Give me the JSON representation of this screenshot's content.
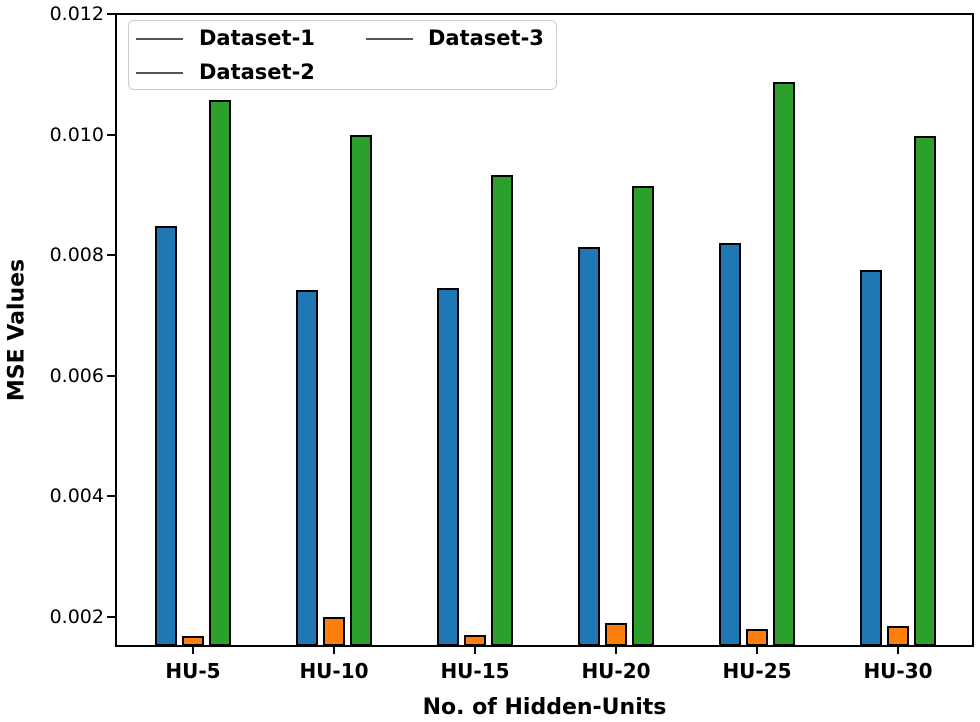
{
  "axes": {
    "ylabel": "MSE Values",
    "xlabel": "No. of Hidden-Units",
    "ytick_labels": [
      "0.002",
      "0.004",
      "0.006",
      "0.008",
      "0.010",
      "0.012"
    ],
    "xtick_labels": [
      "HU-5",
      "HU-10",
      "HU-15",
      "HU-20",
      "HU-25",
      "HU-30"
    ]
  },
  "legend": {
    "entries": [
      "Dataset-1",
      "Dataset-2",
      "Dataset-3"
    ],
    "marker_color": "#555555"
  },
  "colors": {
    "dataset1": "#1f77b4",
    "dataset2": "#ff7f0e",
    "dataset3": "#2ca02c",
    "bar_edge": "#000000",
    "spine": "#000000"
  },
  "chart_data": {
    "type": "bar",
    "title": "",
    "xlabel": "No. of Hidden-Units",
    "ylabel": "MSE Values",
    "categories": [
      "HU-5",
      "HU-10",
      "HU-15",
      "HU-20",
      "HU-25",
      "HU-30"
    ],
    "series": [
      {
        "name": "Dataset-1",
        "color": "#1f77b4",
        "values": [
          0.00849,
          0.00743,
          0.00745,
          0.00814,
          0.0082,
          0.00776
        ]
      },
      {
        "name": "Dataset-2",
        "color": "#ff7f0e",
        "values": [
          0.00168,
          0.002,
          0.0017,
          0.0019,
          0.00181,
          0.00185
        ]
      },
      {
        "name": "Dataset-3",
        "color": "#2ca02c",
        "values": [
          0.01058,
          0.01,
          0.00933,
          0.00914,
          0.01087,
          0.00997
        ]
      }
    ],
    "ylim": [
      0.00152,
      0.012
    ],
    "yticks": [
      0.002,
      0.004,
      0.006,
      0.008,
      0.01,
      0.012
    ],
    "grid": false,
    "legend_position": "upper-left",
    "legend_columns": 2
  }
}
